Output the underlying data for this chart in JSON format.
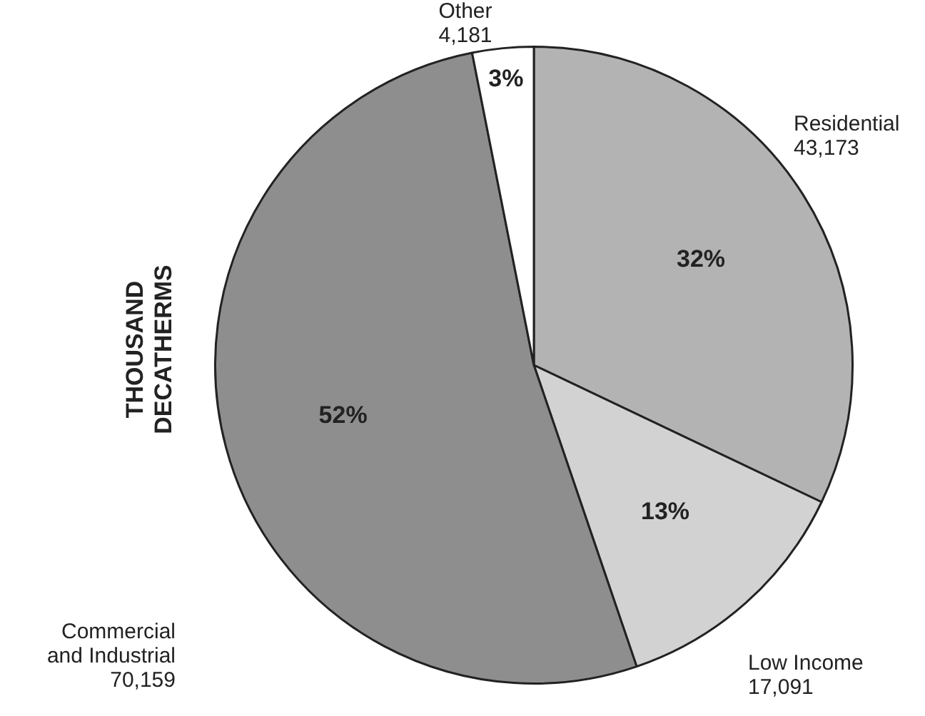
{
  "chart_data": {
    "type": "pie",
    "ylabel": "THOUSAND DECATHERMS",
    "categories": [
      "Residential",
      "Low Income",
      "Commercial and Industrial",
      "Other"
    ],
    "values": [
      43173,
      17091,
      70159,
      4181
    ],
    "value_labels": [
      "43,173",
      "17,091",
      "70,159",
      "4,181"
    ],
    "colors": [
      "#b3b3b3",
      "#d2d2d2",
      "#8e8e8e",
      "#ffffff"
    ],
    "annotations": [
      "32%",
      "13%",
      "52%",
      "3%"
    ],
    "legend": false
  }
}
